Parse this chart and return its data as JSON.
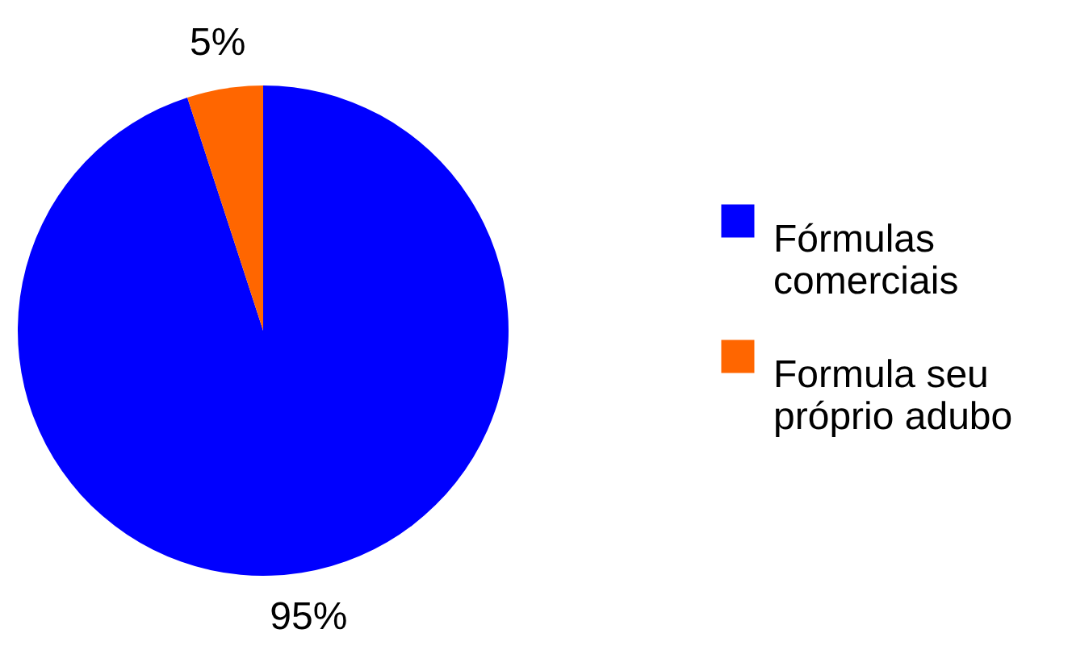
{
  "chart_data": {
    "type": "pie",
    "categories": [
      "Fórmulas comerciais",
      "Formula seu próprio adubo"
    ],
    "values": [
      95,
      5
    ],
    "colors": [
      "#0000ff",
      "#ff6600"
    ],
    "value_labels": [
      "95%",
      "5%"
    ],
    "legend": "right"
  }
}
